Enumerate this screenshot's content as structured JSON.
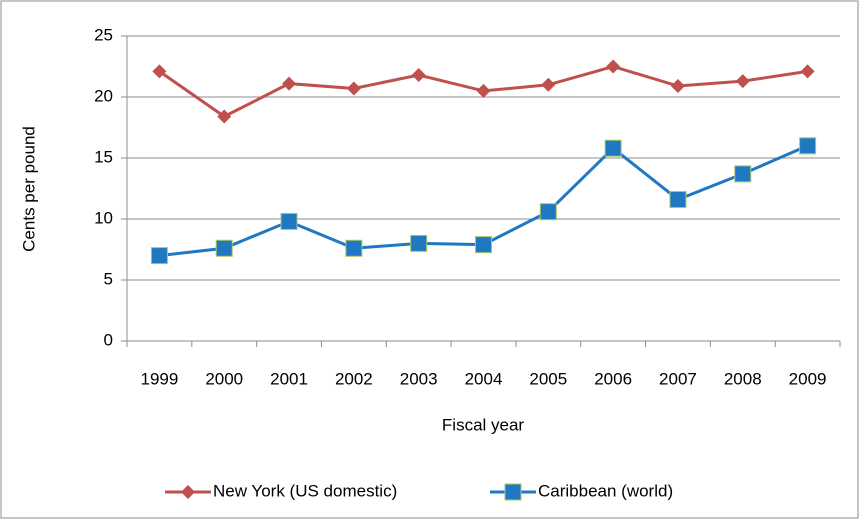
{
  "chart_data": {
    "type": "line",
    "y_label": "Cents per pound",
    "x_label": "Fiscal year",
    "categories": [
      "1999",
      "2000",
      "2001",
      "2002",
      "2003",
      "2004",
      "2005",
      "2006",
      "2007",
      "2008",
      "2009"
    ],
    "series": [
      {
        "name": "New York (US domestic)",
        "color": "#c0504d",
        "marker": "diamond",
        "values": [
          22.1,
          18.4,
          21.1,
          20.7,
          21.8,
          20.5,
          21.0,
          22.5,
          20.9,
          21.3,
          22.1
        ]
      },
      {
        "name": "Caribbean (world)",
        "color": "#1f78c1",
        "marker": "square",
        "values": [
          7.0,
          7.6,
          9.8,
          7.6,
          8.0,
          7.9,
          10.6,
          15.8,
          11.6,
          13.7,
          16.0
        ]
      }
    ],
    "ylim": [
      0,
      25
    ],
    "yticks": [
      0,
      5,
      10,
      15,
      20,
      25
    ],
    "grid": true,
    "legend": "bottom"
  }
}
